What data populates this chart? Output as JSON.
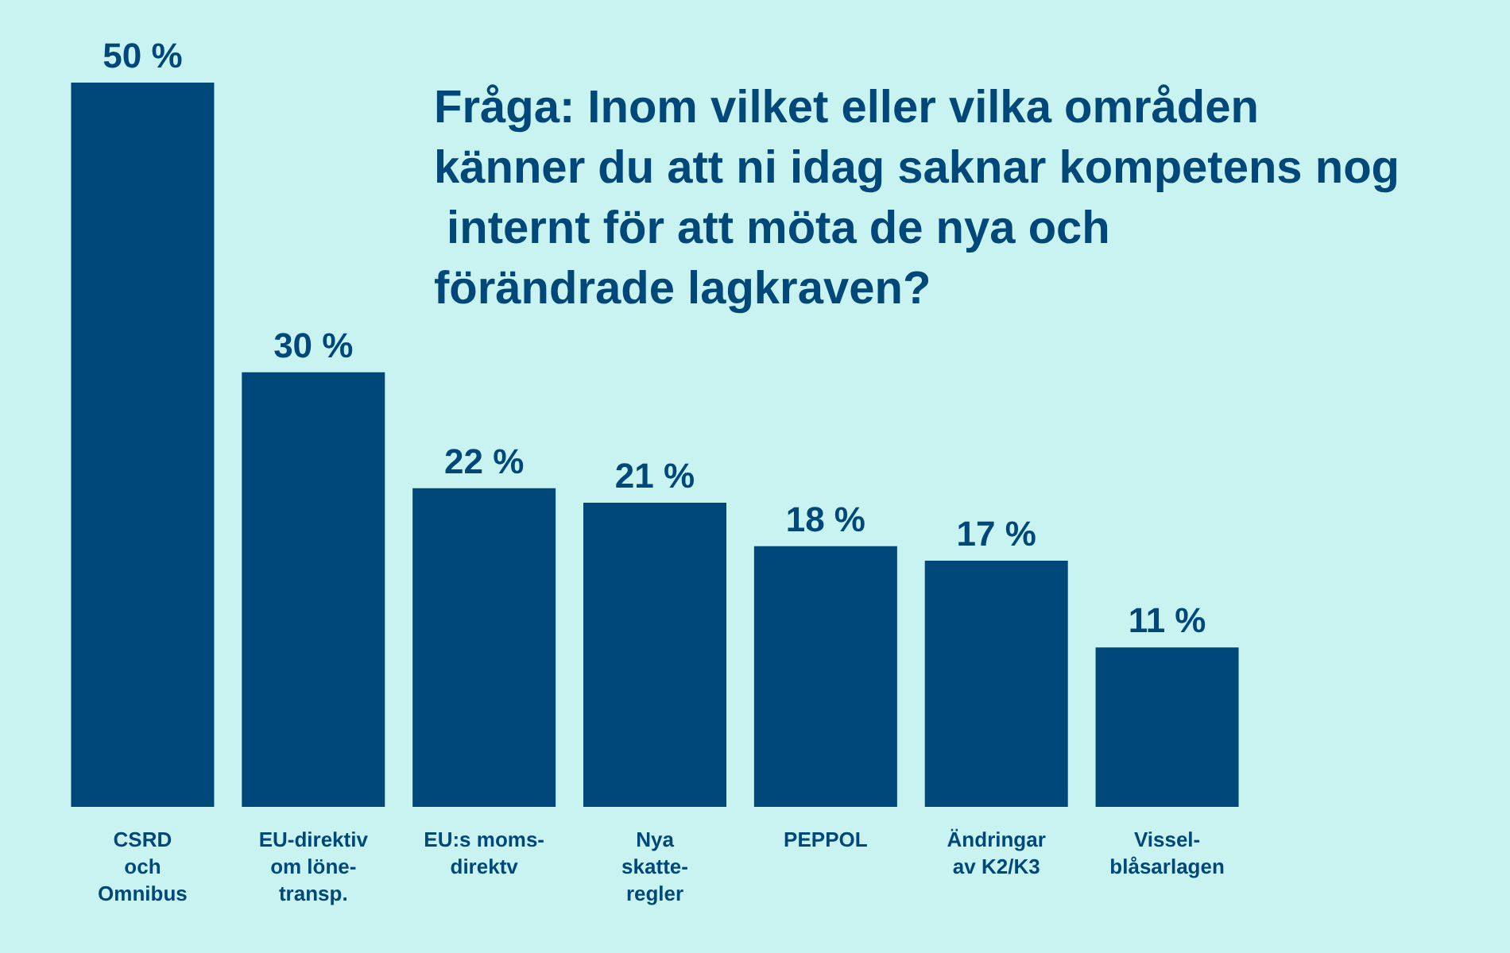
{
  "chart_data": {
    "type": "bar",
    "title": "Fråga: Inom vilket eller vilka områden känner du att ni idag saknar kompetens nog internt för att möta de nya och förändrade lagkraven?",
    "categories": [
      "CSRD\noch\nOmnibus",
      "EU-direktiv\nom löne-\ntransp.",
      "EU:s moms-\ndirektv",
      "Nya\nskatte-\nregler",
      "PEPPOL",
      "Ändringar\nav K2/K3",
      "Vissel-\nblåsarlagen"
    ],
    "values": [
      50,
      30,
      22,
      21,
      18,
      17,
      11
    ],
    "value_labels": [
      "50 %",
      "30 %",
      "22 %",
      "21 %",
      "18 %",
      "17 %",
      "11 %"
    ],
    "color": "#00487a"
  }
}
